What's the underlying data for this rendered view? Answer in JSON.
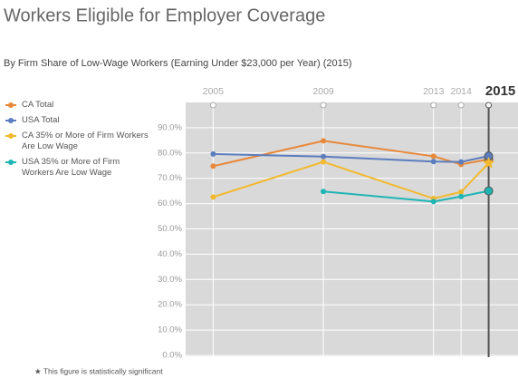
{
  "chart_data": {
    "type": "line",
    "title": "Workers Eligible for Employer Coverage",
    "subtitle": "By Firm Share of Low-Wage Workers (Earning Under $23,000 per Year) (2015)",
    "x": [
      2005,
      2009,
      2013,
      2014,
      2015
    ],
    "series": [
      {
        "name": "CA Total",
        "color": "#e8883a",
        "values": [
          74.8,
          84.8,
          78.7,
          75.5,
          77.5
        ]
      },
      {
        "name": "USA Total",
        "color": "#5b7dbf",
        "values": [
          79.6,
          78.6,
          76.6,
          76.5,
          78.8
        ]
      },
      {
        "name": "CA 35% or More of Firm Workers Are Low Wage",
        "color": "#f2b92e",
        "values": [
          62.6,
          76.5,
          62.0,
          64.6,
          76.0
        ],
        "markers": [
          "circle",
          "circle",
          "circle",
          "circle",
          "star"
        ]
      },
      {
        "name": "USA 35% or More of Firm Workers Are Low Wage",
        "color": "#1fb5b5",
        "values": [
          null,
          64.8,
          60.8,
          62.8,
          65.0
        ]
      }
    ],
    "xlim": [
      2004,
      2016
    ],
    "xticks": [
      2005,
      2009,
      2013,
      2014,
      2015
    ],
    "ylim": [
      0,
      100
    ],
    "yticks": [
      {
        "value": 0,
        "label": "0.0%"
      },
      {
        "value": 10,
        "label": "10.0%"
      },
      {
        "value": 20,
        "label": "20.0%"
      },
      {
        "value": 30,
        "label": "30.0%"
      },
      {
        "value": 40,
        "label": "40.0%"
      },
      {
        "value": 50,
        "label": "50.0%"
      },
      {
        "value": 60,
        "label": "60.0%"
      },
      {
        "value": 70,
        "label": "70.0%"
      },
      {
        "value": 80,
        "label": "80.0%"
      },
      {
        "value": 90,
        "label": "90.0%"
      }
    ],
    "grid": true,
    "footnote": "★ This figure is statistically significant"
  }
}
